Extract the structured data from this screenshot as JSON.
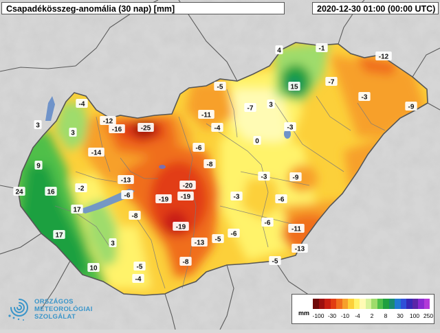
{
  "header": {
    "title": "Csapadékösszeg-anomália (30 nap) [mm]",
    "timestamp": "2020-12-30 01:00 (00:00 UTC)"
  },
  "map": {
    "labels": [
      {
        "id": "l1",
        "text": "4"
      },
      {
        "id": "l2",
        "text": "-1"
      },
      {
        "id": "l3",
        "text": "-12"
      },
      {
        "id": "l4",
        "text": "-5"
      },
      {
        "id": "l5",
        "text": "15"
      },
      {
        "id": "l6",
        "text": "-7"
      },
      {
        "id": "l7",
        "text": "-3"
      },
      {
        "id": "l8",
        "text": "-9"
      },
      {
        "id": "l9",
        "text": "-4"
      },
      {
        "id": "l10",
        "text": "3"
      },
      {
        "id": "l11",
        "text": "-7"
      },
      {
        "id": "l12",
        "text": "-11"
      },
      {
        "id": "l13",
        "text": "-4"
      },
      {
        "id": "l14",
        "text": "-3"
      },
      {
        "id": "l15",
        "text": "3"
      },
      {
        "id": "l16",
        "text": "-12"
      },
      {
        "id": "l17",
        "text": "-16"
      },
      {
        "id": "l18",
        "text": "-25"
      },
      {
        "id": "l19",
        "text": "3"
      },
      {
        "id": "l20",
        "text": "0"
      },
      {
        "id": "l21",
        "text": "-6"
      },
      {
        "id": "l22",
        "text": "-14"
      },
      {
        "id": "l23",
        "text": "9"
      },
      {
        "id": "l24",
        "text": "-8"
      },
      {
        "id": "l25",
        "text": "-3"
      },
      {
        "id": "l26",
        "text": "-9"
      },
      {
        "id": "l27",
        "text": "-13"
      },
      {
        "id": "l28",
        "text": "-20"
      },
      {
        "id": "l29",
        "text": "24"
      },
      {
        "id": "l30",
        "text": "16"
      },
      {
        "id": "l31",
        "text": "-2"
      },
      {
        "id": "l32",
        "text": "-6"
      },
      {
        "id": "l33",
        "text": "-19"
      },
      {
        "id": "l34",
        "text": "-19"
      },
      {
        "id": "l35",
        "text": "-3"
      },
      {
        "id": "l36",
        "text": "-6"
      },
      {
        "id": "l37",
        "text": "17"
      },
      {
        "id": "l38",
        "text": "-8"
      },
      {
        "id": "l39",
        "text": "-6"
      },
      {
        "id": "l40",
        "text": "-19"
      },
      {
        "id": "l41",
        "text": "-11"
      },
      {
        "id": "l42",
        "text": "17"
      },
      {
        "id": "l43",
        "text": "-6"
      },
      {
        "id": "l44",
        "text": "-5"
      },
      {
        "id": "l45",
        "text": "-13"
      },
      {
        "id": "l46",
        "text": "3"
      },
      {
        "id": "l47",
        "text": "-13"
      },
      {
        "id": "l48",
        "text": "-8"
      },
      {
        "id": "l49",
        "text": "-5"
      },
      {
        "id": "l50",
        "text": "10"
      },
      {
        "id": "l51",
        "text": "-5"
      },
      {
        "id": "l52",
        "text": "-4"
      }
    ]
  },
  "legend": {
    "unit": "mm",
    "colors": [
      "#6e0a0a",
      "#9c0f0f",
      "#c81e12",
      "#e23d12",
      "#f06e1e",
      "#f7a02a",
      "#fcd03a",
      "#fff36b",
      "#fffbb4",
      "#d7f29b",
      "#9fdc6c",
      "#4fbf4a",
      "#1ea03f",
      "#178a6f",
      "#1f7ad0",
      "#2f4fd8",
      "#3629b4",
      "#5a25a8",
      "#8a2ad0",
      "#b23ad8"
    ],
    "ticks": [
      "-100",
      "-30",
      "-10",
      "-4",
      "2",
      "8",
      "30",
      "100",
      "250"
    ]
  },
  "logo": {
    "line1": "ORSZÁGOS",
    "line2": "METEOROLÓGIAI",
    "line3": "SZOLGÁLAT"
  }
}
